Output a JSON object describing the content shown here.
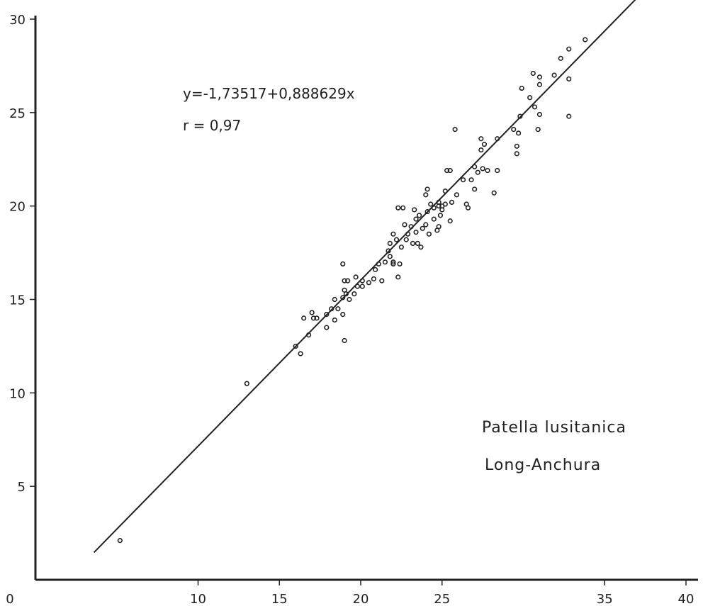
{
  "chart_data": {
    "type": "scatter",
    "title": "",
    "xlabel": "",
    "ylabel": "",
    "xlim": [
      0,
      40
    ],
    "ylim": [
      0,
      30
    ],
    "x_ticks": [
      0,
      10,
      15,
      20,
      25,
      35,
      40
    ],
    "x_tick_labels": [
      "0",
      "10",
      "15",
      "20",
      "25",
      "35",
      "40"
    ],
    "y_ticks": [
      5,
      10,
      15,
      20,
      25,
      30
    ],
    "y_tick_labels": [
      "5",
      "10",
      "15",
      "20",
      "25",
      "30"
    ],
    "grid": false,
    "annotations": {
      "equation": "y=-1,73517+0,888629x",
      "correlation": "r = 0,97",
      "species": "Patella  lusitanica",
      "site": "Long-Anchura"
    },
    "regression": {
      "intercept": -1.73517,
      "slope": 0.888629,
      "x_range": [
        3.6,
        39.7
      ]
    },
    "series": [
      {
        "points": [
          [
            5.2,
            2.1
          ],
          [
            13.0,
            10.5
          ],
          [
            16.0,
            12.5
          ],
          [
            16.3,
            12.1
          ],
          [
            16.5,
            14.0
          ],
          [
            16.8,
            13.1
          ],
          [
            17.0,
            14.3
          ],
          [
            17.1,
            14.0
          ],
          [
            17.3,
            14.0
          ],
          [
            17.9,
            14.2
          ],
          [
            17.9,
            13.5
          ],
          [
            18.2,
            14.5
          ],
          [
            18.4,
            13.9
          ],
          [
            18.4,
            15.0
          ],
          [
            18.6,
            14.5
          ],
          [
            18.9,
            14.2
          ],
          [
            19.0,
            12.8
          ],
          [
            18.9,
            15.1
          ],
          [
            19.0,
            15.5
          ],
          [
            18.9,
            16.9
          ],
          [
            19.0,
            16.0
          ],
          [
            19.2,
            16.0
          ],
          [
            19.1,
            15.3
          ],
          [
            19.3,
            15.0
          ],
          [
            19.6,
            15.3
          ],
          [
            19.8,
            15.7
          ],
          [
            19.7,
            16.2
          ],
          [
            20.1,
            15.7
          ],
          [
            20.1,
            16.0
          ],
          [
            20.5,
            15.9
          ],
          [
            20.8,
            16.1
          ],
          [
            20.9,
            16.6
          ],
          [
            21.1,
            16.9
          ],
          [
            21.3,
            16.0
          ],
          [
            21.5,
            17.0
          ],
          [
            21.7,
            17.6
          ],
          [
            21.8,
            17.3
          ],
          [
            21.8,
            18.0
          ],
          [
            22.0,
            17.0
          ],
          [
            22.0,
            18.5
          ],
          [
            22.2,
            18.2
          ],
          [
            22.0,
            16.9
          ],
          [
            22.3,
            16.2
          ],
          [
            22.4,
            16.9
          ],
          [
            22.5,
            17.8
          ],
          [
            22.8,
            18.2
          ],
          [
            22.7,
            19.0
          ],
          [
            22.9,
            18.5
          ],
          [
            22.3,
            19.9
          ],
          [
            22.6,
            19.9
          ],
          [
            23.1,
            18.9
          ],
          [
            23.2,
            18.0
          ],
          [
            23.4,
            19.3
          ],
          [
            23.3,
            19.8
          ],
          [
            23.4,
            18.6
          ],
          [
            23.5,
            18.0
          ],
          [
            23.6,
            19.5
          ],
          [
            23.7,
            17.8
          ],
          [
            23.8,
            18.8
          ],
          [
            24.0,
            19.0
          ],
          [
            24.1,
            19.7
          ],
          [
            24.2,
            18.5
          ],
          [
            24.3,
            20.1
          ],
          [
            24.0,
            20.6
          ],
          [
            24.1,
            20.9
          ],
          [
            24.5,
            19.9
          ],
          [
            24.5,
            19.3
          ],
          [
            24.7,
            18.7
          ],
          [
            24.8,
            20.0
          ],
          [
            24.8,
            18.9
          ],
          [
            24.8,
            20.2
          ],
          [
            24.9,
            19.5
          ],
          [
            25.0,
            20.0
          ],
          [
            25.0,
            19.8
          ],
          [
            25.2,
            20.8
          ],
          [
            25.2,
            20.1
          ],
          [
            25.3,
            21.9
          ],
          [
            25.5,
            21.9
          ],
          [
            25.5,
            19.2
          ],
          [
            25.6,
            20.2
          ],
          [
            25.8,
            24.1
          ],
          [
            25.9,
            20.6
          ],
          [
            26.3,
            21.4
          ],
          [
            26.5,
            20.1
          ],
          [
            26.6,
            19.9
          ],
          [
            26.8,
            21.4
          ],
          [
            27.0,
            22.1
          ],
          [
            27.0,
            20.9
          ],
          [
            27.2,
            21.8
          ],
          [
            27.4,
            23.0
          ],
          [
            27.4,
            23.6
          ],
          [
            27.5,
            22.0
          ],
          [
            27.6,
            23.3
          ],
          [
            27.8,
            21.9
          ],
          [
            28.2,
            20.7
          ],
          [
            28.4,
            21.9
          ],
          [
            28.4,
            23.6
          ],
          [
            29.4,
            24.1
          ],
          [
            29.6,
            23.2
          ],
          [
            29.6,
            22.8
          ],
          [
            29.7,
            23.9
          ],
          [
            29.8,
            24.8
          ],
          [
            29.9,
            26.3
          ],
          [
            30.4,
            25.8
          ],
          [
            30.6,
            27.1
          ],
          [
            30.7,
            25.3
          ],
          [
            30.9,
            24.1
          ],
          [
            31.0,
            24.9
          ],
          [
            31.0,
            26.5
          ],
          [
            31.0,
            26.9
          ],
          [
            31.9,
            27.0
          ],
          [
            32.3,
            27.9
          ],
          [
            32.8,
            26.8
          ],
          [
            32.8,
            28.4
          ],
          [
            32.8,
            24.8
          ],
          [
            33.8,
            28.9
          ]
        ]
      }
    ]
  }
}
